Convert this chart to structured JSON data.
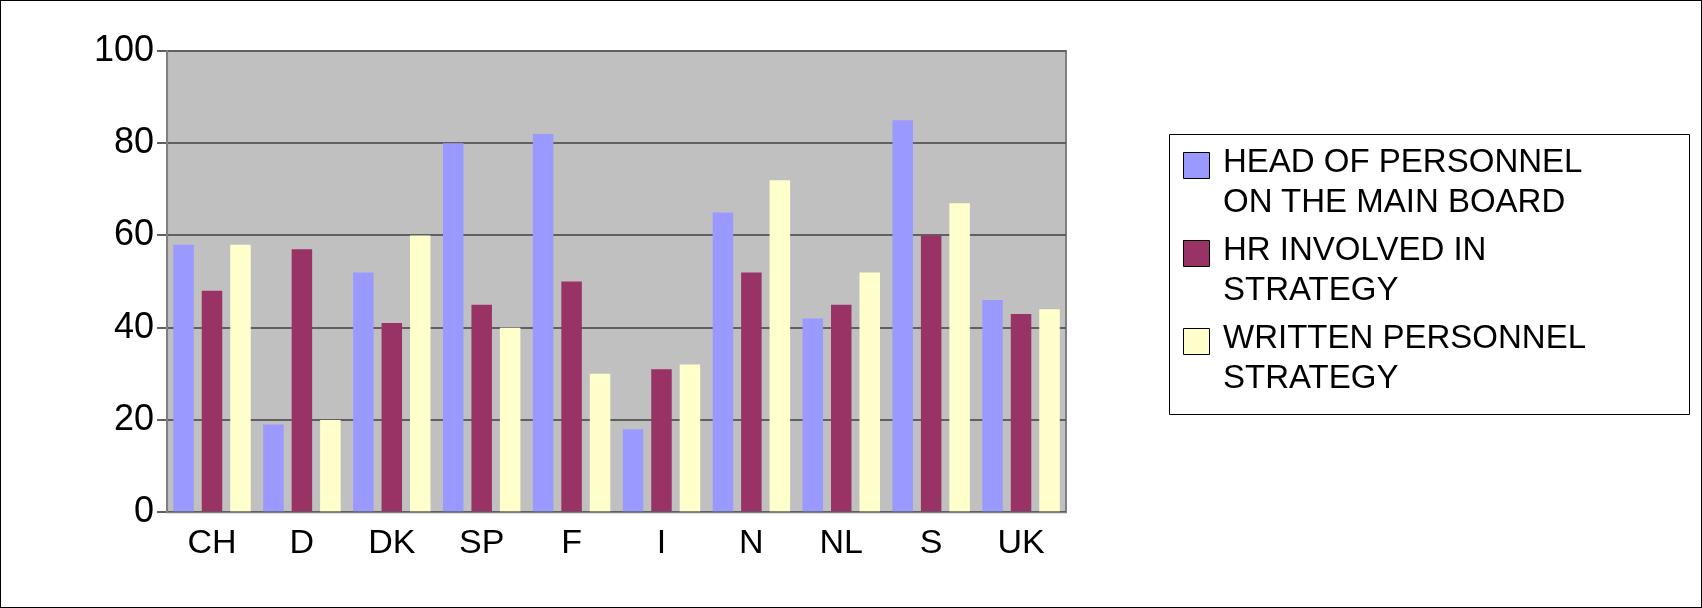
{
  "chart_data": {
    "type": "bar",
    "categories": [
      "CH",
      "D",
      "DK",
      "SP",
      "F",
      "I",
      "N",
      "NL",
      "S",
      "UK"
    ],
    "series": [
      {
        "name": "HEAD OF PERSONNEL ON THE MAIN BOARD",
        "color": "#9999ff",
        "values": [
          58,
          19,
          52,
          80,
          82,
          18,
          65,
          42,
          85,
          46
        ]
      },
      {
        "name": "HR INVOLVED IN STRATEGY",
        "color": "#993366",
        "values": [
          48,
          57,
          41,
          45,
          50,
          31,
          52,
          45,
          60,
          43
        ]
      },
      {
        "name": "WRITTEN PERSONNEL STRATEGY",
        "color": "#ffffcc",
        "values": [
          58,
          20,
          60,
          40,
          30,
          32,
          72,
          52,
          67,
          44
        ]
      }
    ],
    "ylim": [
      0,
      100
    ],
    "yticks": [
      0,
      20,
      40,
      60,
      80,
      100
    ],
    "grid": "y",
    "legend": "right"
  }
}
